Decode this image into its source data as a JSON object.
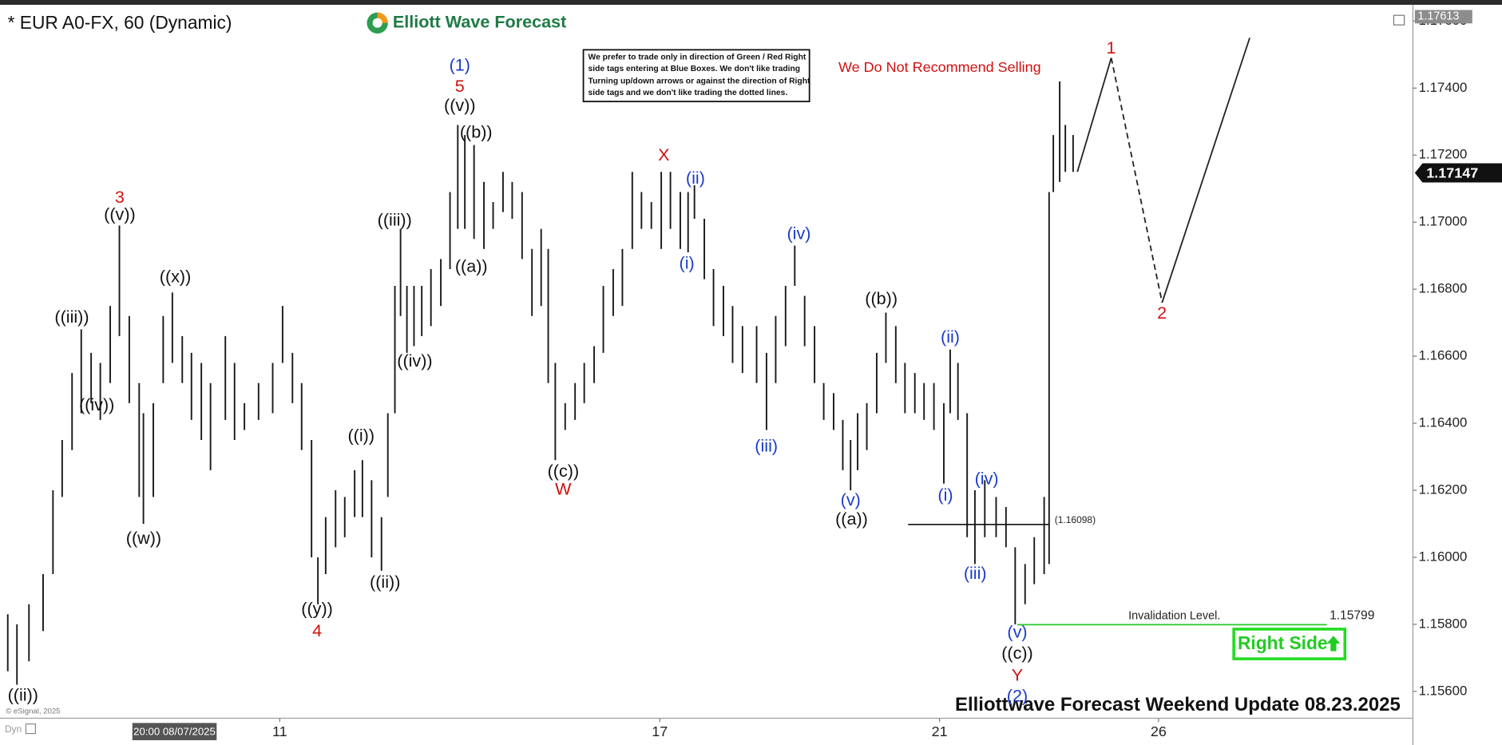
{
  "chart_data": {
    "type": "ohlc",
    "title": "* EUR A0-FX, 60 (Dynamic)",
    "brand": "Elliott Wave Forecast",
    "note_lines": [
      "We prefer to trade only in direction of Green / Red Right",
      "side tags entering at Blue Boxes. We don't like trading",
      "Turning up/down arrows or against the direction of Right",
      "side tags and we don't like trading the dotted lines."
    ],
    "warning": "We Do Not Recommend Selling",
    "footer": "Elliottwave Forecast Weekend  Update 08.23.2025",
    "copyright": "© eSignal, 2025",
    "mode_label": "Dyn",
    "right_side_label": "Right Side",
    "xlim": [
      0,
      20
    ],
    "ylim": [
      1.1552,
      1.1764
    ],
    "xticks": [
      {
        "value": 3.96,
        "label": "11"
      },
      {
        "value": 9.34,
        "label": "17"
      },
      {
        "value": 13.3,
        "label": "21"
      },
      {
        "value": 16.4,
        "label": "26"
      }
    ],
    "cursor_time": {
      "value": 2.47,
      "label": "20:00 08/07/2025"
    },
    "yticks": [
      {
        "value": 1.156,
        "label": "1.15600"
      },
      {
        "value": 1.158,
        "label": "1.15800"
      },
      {
        "value": 1.16,
        "label": "1.16000"
      },
      {
        "value": 1.162,
        "label": "1.16200"
      },
      {
        "value": 1.164,
        "label": "1.16400"
      },
      {
        "value": 1.166,
        "label": "1.16600"
      },
      {
        "value": 1.168,
        "label": "1.16800"
      },
      {
        "value": 1.17,
        "label": "1.17000"
      },
      {
        "value": 1.172,
        "label": "1.17200"
      },
      {
        "value": 1.174,
        "label": "1.17400"
      },
      {
        "value": 1.176,
        "label": "1.17600"
      }
    ],
    "grid": false,
    "series": [
      {
        "color": "#1a1a1a",
        "x": [
          0.11,
          0.24,
          0.41,
          0.61,
          0.75,
          0.88,
          1.02,
          1.15,
          1.29,
          1.42,
          1.56,
          1.69,
          1.83,
          1.97,
          2.03,
          2.17,
          2.31,
          2.44,
          2.58,
          2.71,
          2.85,
          2.98,
          3.19,
          3.32,
          3.46,
          3.66,
          3.86,
          4.0,
          4.14,
          4.27,
          4.41,
          4.5,
          4.61,
          4.75,
          4.88,
          5.02,
          5.13,
          5.26,
          5.4,
          5.49,
          5.59,
          5.67,
          5.76,
          5.86,
          5.97,
          6.1,
          6.24,
          6.37,
          6.48,
          6.58,
          6.71,
          6.85,
          6.98,
          7.12,
          7.25,
          7.39,
          7.53,
          7.66,
          7.76,
          7.86,
          8.0,
          8.14,
          8.27,
          8.41,
          8.54,
          8.68,
          8.81,
          8.95,
          9.08,
          9.22,
          9.36,
          9.49,
          9.63,
          9.74,
          9.83,
          9.97,
          10.1,
          10.24,
          10.37,
          10.51,
          10.71,
          10.85,
          10.98,
          11.12,
          11.25,
          11.39,
          11.53,
          11.66,
          11.8,
          11.93,
          12.04,
          12.14,
          12.27,
          12.41,
          12.54,
          12.68,
          12.81,
          12.95,
          13.08,
          13.22,
          13.36,
          13.45,
          13.56,
          13.69,
          13.8,
          13.94,
          14.1,
          14.24,
          14.37,
          14.51,
          14.64,
          14.78,
          14.85,
          14.91,
          15.0,
          15.08,
          15.19
        ],
        "high": [
          1.1583,
          1.158,
          1.1586,
          1.1595,
          1.162,
          1.1635,
          1.1655,
          1.1668,
          1.1661,
          1.1658,
          1.1675,
          1.1699,
          1.1672,
          1.1652,
          1.1643,
          1.1646,
          1.1672,
          1.1679,
          1.1666,
          1.1661,
          1.1658,
          1.1652,
          1.1666,
          1.1658,
          1.1646,
          1.1652,
          1.1658,
          1.1675,
          1.1661,
          1.1652,
          1.1635,
          1.16,
          1.1612,
          1.162,
          1.1618,
          1.1626,
          1.1629,
          1.1623,
          1.1612,
          1.1643,
          1.1681,
          1.1698,
          1.1681,
          1.1681,
          1.1681,
          1.1686,
          1.1689,
          1.1709,
          1.1729,
          1.1726,
          1.1723,
          1.1712,
          1.1706,
          1.1715,
          1.1712,
          1.1709,
          1.1692,
          1.1698,
          1.1692,
          1.1658,
          1.1646,
          1.1652,
          1.1658,
          1.1663,
          1.1681,
          1.1686,
          1.1692,
          1.1715,
          1.1709,
          1.1706,
          1.1715,
          1.1715,
          1.1709,
          1.1709,
          1.1711,
          1.1701,
          1.1686,
          1.1681,
          1.1675,
          1.1669,
          1.1669,
          1.1661,
          1.1672,
          1.1681,
          1.1693,
          1.1678,
          1.1669,
          1.1652,
          1.1649,
          1.1641,
          1.1635,
          1.1643,
          1.1646,
          1.1661,
          1.1673,
          1.1669,
          1.1658,
          1.1655,
          1.1652,
          1.1652,
          1.1646,
          1.1662,
          1.1658,
          1.1643,
          1.162,
          1.1623,
          1.1618,
          1.1615,
          1.1603,
          1.1598,
          1.1606,
          1.1618,
          1.1709,
          1.1726,
          1.1742,
          1.1729,
          1.1726
        ],
        "low": [
          1.1566,
          1.1562,
          1.1569,
          1.1578,
          1.1595,
          1.1618,
          1.1632,
          1.1643,
          1.1646,
          1.1641,
          1.1652,
          1.1666,
          1.1646,
          1.1618,
          1.161,
          1.1618,
          1.1652,
          1.1658,
          1.1652,
          1.1641,
          1.1635,
          1.1626,
          1.1641,
          1.1635,
          1.1638,
          1.1641,
          1.1643,
          1.1658,
          1.1646,
          1.1632,
          1.16,
          1.1586,
          1.1595,
          1.1603,
          1.1606,
          1.1612,
          1.1612,
          1.16,
          1.1596,
          1.1618,
          1.1643,
          1.1672,
          1.1661,
          1.1663,
          1.1666,
          1.1669,
          1.1675,
          1.1686,
          1.1698,
          1.1698,
          1.1695,
          1.1692,
          1.1698,
          1.1703,
          1.1701,
          1.1689,
          1.1672,
          1.1675,
          1.1652,
          1.1629,
          1.1638,
          1.1641,
          1.1646,
          1.1652,
          1.1661,
          1.1672,
          1.1675,
          1.1692,
          1.1698,
          1.1698,
          1.1692,
          1.1698,
          1.1692,
          1.1691,
          1.1701,
          1.1683,
          1.1669,
          1.1666,
          1.1658,
          1.1655,
          1.1652,
          1.1638,
          1.1652,
          1.1663,
          1.1681,
          1.1663,
          1.1652,
          1.1641,
          1.1638,
          1.1626,
          1.162,
          1.1626,
          1.1632,
          1.1643,
          1.1658,
          1.1652,
          1.1643,
          1.1643,
          1.1641,
          1.1638,
          1.1622,
          1.1643,
          1.1641,
          1.1606,
          1.1598,
          1.1606,
          1.1606,
          1.1603,
          1.158,
          1.1586,
          1.1592,
          1.1595,
          1.1598,
          1.1709,
          1.1712,
          1.1715,
          1.1715
        ]
      }
    ],
    "projection": {
      "color": "#222222",
      "x": [
        15.25,
        15.73,
        16.45,
        17.69
      ],
      "values": [
        1.1715,
        1.1749,
        1.1676,
        1.1755
      ],
      "dashed": [
        false,
        true,
        false
      ]
    },
    "last_price": 1.17147,
    "session_high": 1.17613,
    "levels": [
      {
        "value": 1.16098,
        "label": "(1.16098)",
        "color": "#111111"
      }
    ],
    "invalidation": {
      "text": "Invalidation Level.",
      "value": 1.15799,
      "color": "#33cc33"
    },
    "annotations": [
      {
        "text": "((ii))",
        "color": "#111111"
      },
      {
        "text": "((iii))",
        "color": "#111111"
      },
      {
        "text": "3",
        "color": "#d01010"
      },
      {
        "text": "((v))",
        "color": "#111111"
      },
      {
        "text": "((iv))",
        "color": "#111111"
      },
      {
        "text": "((x))",
        "color": "#111111"
      },
      {
        "text": "((w))",
        "color": "#111111"
      },
      {
        "text": "((y))",
        "color": "#111111"
      },
      {
        "text": "4",
        "color": "#d01010"
      },
      {
        "text": "((i))",
        "color": "#111111"
      },
      {
        "text": "((ii))",
        "color": "#111111"
      },
      {
        "text": "((iii))",
        "color": "#111111"
      },
      {
        "text": "((iv))",
        "color": "#111111"
      },
      {
        "text": "(1)",
        "color": "#1a3cc8"
      },
      {
        "text": "5",
        "color": "#d01010"
      },
      {
        "text": "((v))",
        "color": "#111111"
      },
      {
        "text": "((b))",
        "color": "#111111"
      },
      {
        "text": "((a))",
        "color": "#111111"
      },
      {
        "text": "((c))",
        "color": "#111111"
      },
      {
        "text": "W",
        "color": "#d01010"
      },
      {
        "text": "X",
        "color": "#d01010"
      },
      {
        "text": "(ii)",
        "color": "#1a3cc8"
      },
      {
        "text": "(i)",
        "color": "#1a3cc8"
      },
      {
        "text": "(iv)",
        "color": "#1a3cc8"
      },
      {
        "text": "(iii)",
        "color": "#1a3cc8"
      },
      {
        "text": "(v)",
        "color": "#1a3cc8"
      },
      {
        "text": "((a))",
        "color": "#111111"
      },
      {
        "text": "((b))",
        "color": "#111111"
      },
      {
        "text": "(ii)",
        "color": "#1a3cc8"
      },
      {
        "text": "(i)",
        "color": "#1a3cc8"
      },
      {
        "text": "(iv)",
        "color": "#1a3cc8"
      },
      {
        "text": "(iii)",
        "color": "#1a3cc8"
      },
      {
        "text": "(v)",
        "color": "#1a3cc8"
      },
      {
        "text": "((c))",
        "color": "#111111"
      },
      {
        "text": "Y",
        "color": "#d01010"
      },
      {
        "text": "(2)",
        "color": "#1a3cc8"
      },
      {
        "text": "1",
        "color": "#d01010"
      },
      {
        "text": "2",
        "color": "#d01010"
      }
    ]
  }
}
